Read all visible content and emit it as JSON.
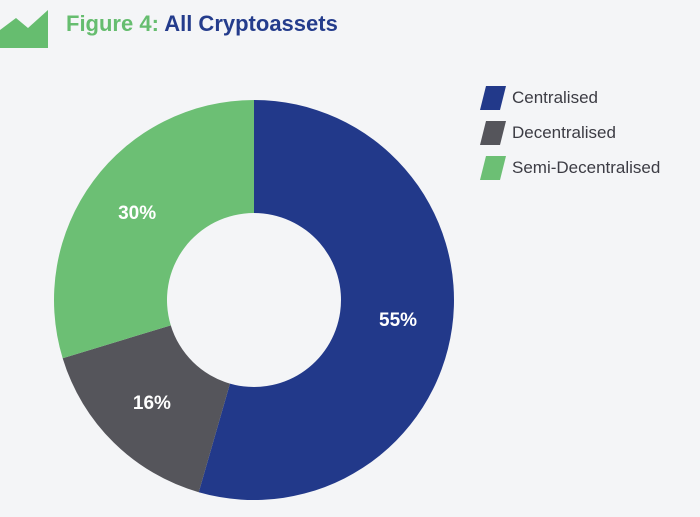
{
  "header": {
    "figure_label": "Figure 4:",
    "title": "All Cryptoassets"
  },
  "colors": {
    "centralised": "#22398a",
    "decentralised": "#55555b",
    "semi_decentralised": "#6cbf74",
    "title_green": "#66bd6f",
    "title_blue": "#243c8c"
  },
  "chart_data": {
    "type": "pie",
    "variant": "donut",
    "title": "All Cryptoassets",
    "legend_position": "top-right",
    "slices": [
      {
        "name": "Centralised",
        "value": 55,
        "label": "55%",
        "color": "#22398a"
      },
      {
        "name": "Decentralised",
        "value": 16,
        "label": "16%",
        "color": "#55555b"
      },
      {
        "name": "Semi-Decentralised",
        "value": 30,
        "label": "30%",
        "color": "#6cbf74"
      }
    ]
  }
}
